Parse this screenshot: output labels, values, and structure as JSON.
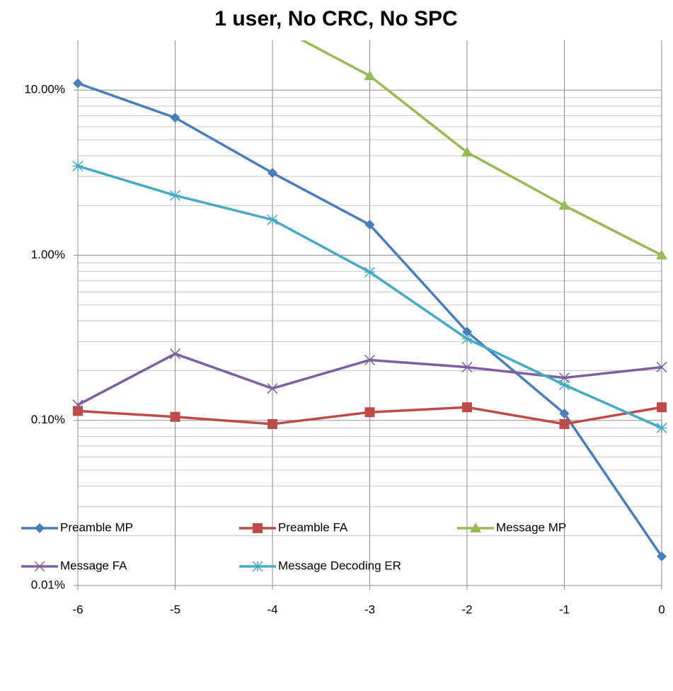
{
  "chart_data": {
    "type": "line",
    "title": "1 user, No CRC, No SPC",
    "x": [
      -6,
      -5,
      -4,
      -3,
      -2,
      -1,
      0
    ],
    "xlim": [
      -6,
      0
    ],
    "xticks": [
      -6,
      -5,
      -4,
      -3,
      -2,
      -1,
      0
    ],
    "ylim": [
      0.01,
      20
    ],
    "log_y": true,
    "yticks": [
      {
        "value": 0.01,
        "label": "0.01%"
      },
      {
        "value": 0.1,
        "label": "0.10%"
      },
      {
        "value": 1,
        "label": "1.00%"
      },
      {
        "value": 10,
        "label": "10.00%"
      }
    ],
    "grid": true,
    "y_minor_grid": true,
    "legend": "bottom",
    "series": [
      {
        "name": "Preamble MP",
        "color": "#4a7ebb",
        "marker": "diamond",
        "values": [
          11.0,
          6.8,
          3.15,
          1.53,
          0.344,
          0.11,
          0.015
        ]
      },
      {
        "name": "Preamble FA",
        "color": "#be4b48",
        "marker": "square",
        "values": [
          0.114,
          0.105,
          0.095,
          0.112,
          0.12,
          0.095,
          0.12
        ]
      },
      {
        "name": "Message MP",
        "color": "#98b954",
        "marker": "triangle",
        "values": [
          null,
          null,
          25,
          12.2,
          4.2,
          2.0,
          1.0
        ]
      },
      {
        "name": "Message FA",
        "color": "#7d60a0",
        "marker": "x",
        "values": [
          0.124,
          0.253,
          0.156,
          0.232,
          0.21,
          0.181,
          0.21
        ]
      },
      {
        "name": "Message Decoding ER",
        "color": "#46aac5",
        "marker": "star",
        "values": [
          3.47,
          2.3,
          1.64,
          0.79,
          0.312,
          0.164,
          0.09
        ]
      }
    ]
  }
}
